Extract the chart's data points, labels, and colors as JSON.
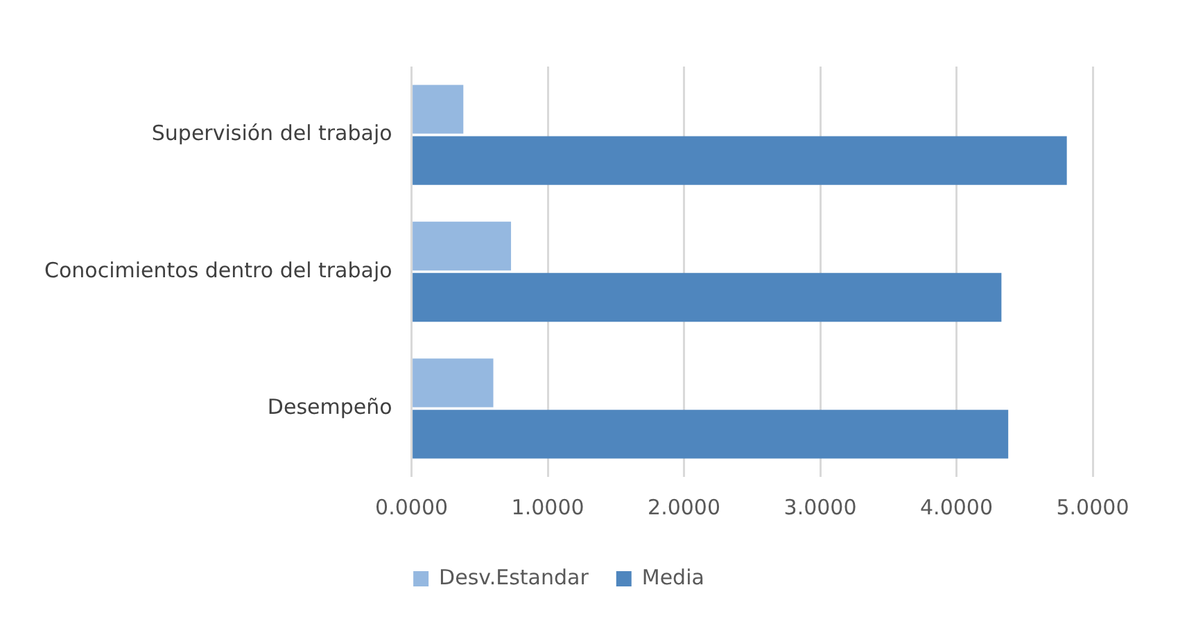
{
  "chart_data": {
    "type": "bar",
    "orientation": "horizontal",
    "categories": [
      "Supervisión del trabajo",
      "Conocimientos dentro del trabajo",
      "Desempeño"
    ],
    "series": [
      {
        "name": "Desv.Estandar",
        "color": "#95b8e0",
        "values": [
          0.38,
          0.73,
          0.6
        ]
      },
      {
        "name": "Media",
        "color": "#4f86be",
        "values": [
          4.81,
          4.33,
          4.38
        ]
      }
    ],
    "xlim": [
      0,
      5
    ],
    "xticks": [
      {
        "value": 0,
        "label": "0.0000"
      },
      {
        "value": 1,
        "label": "1.0000"
      },
      {
        "value": 2,
        "label": "2.0000"
      },
      {
        "value": 3,
        "label": "3.0000"
      },
      {
        "value": 4,
        "label": "4.0000"
      },
      {
        "value": 5,
        "label": "5.0000"
      }
    ],
    "grid": "x",
    "legend": "bottom"
  }
}
